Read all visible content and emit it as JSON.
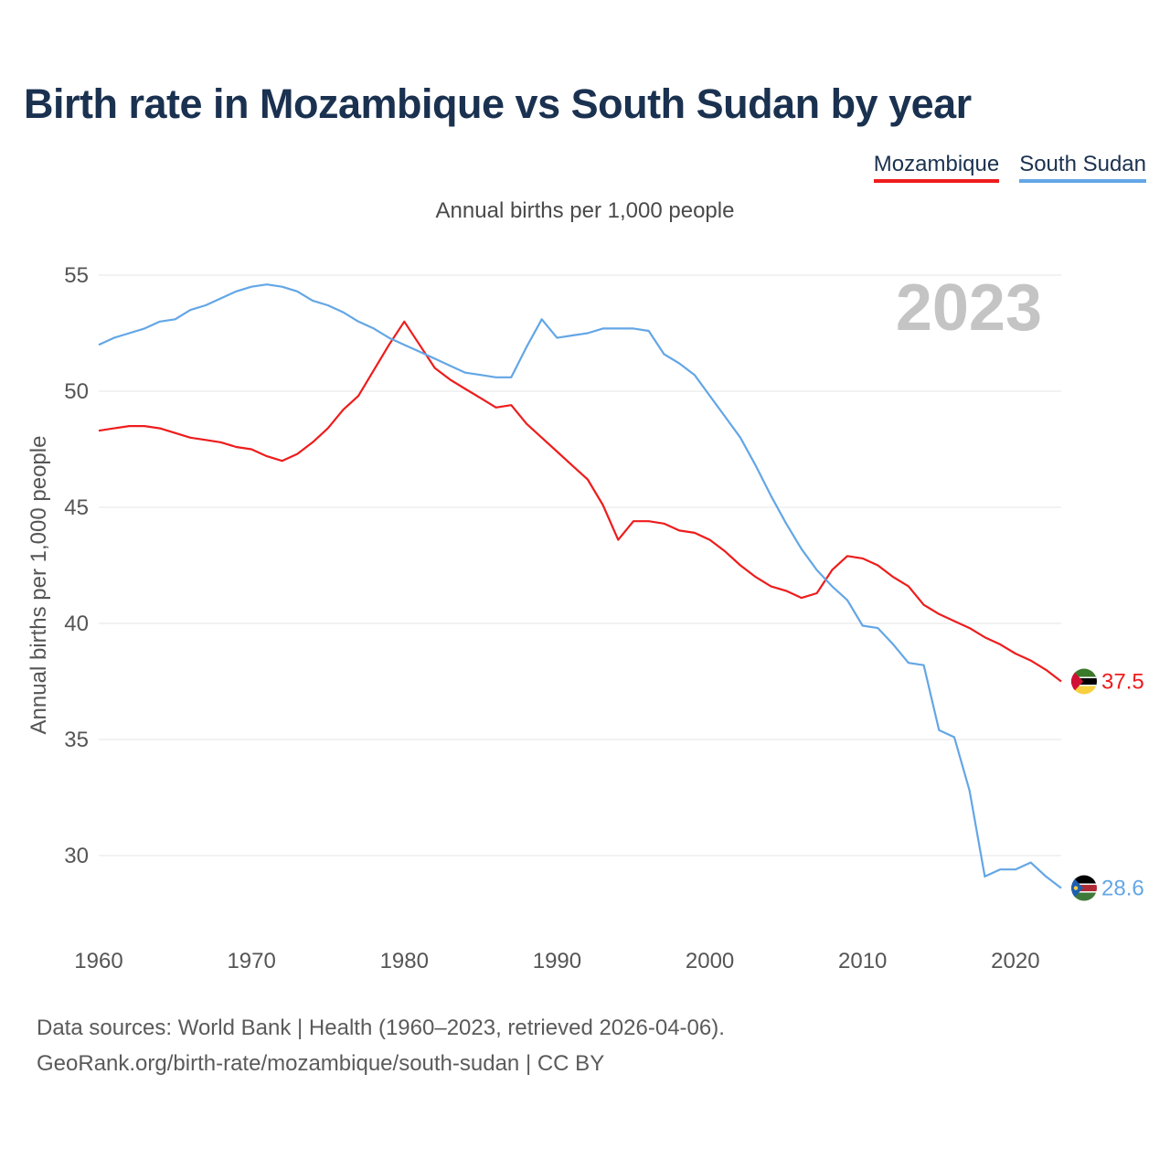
{
  "title": "Birth rate in Mozambique vs South Sudan by year",
  "subtitle": "Annual births per 1,000 people",
  "legend": [
    {
      "name": "Mozambique",
      "color": "#ee1c1c"
    },
    {
      "name": "South Sudan",
      "color": "#63a6e6"
    }
  ],
  "year_badge": "2023",
  "footer": {
    "line1": "Data sources: World Bank | Health (1960–2023, retrieved 2026-04-06).",
    "line2": "GeoRank.org/birth-rate/mozambique/south-sudan | CC BY"
  },
  "chart_data": {
    "type": "line",
    "title": "Birth rate in Mozambique vs South Sudan by year",
    "subtitle": "Annual births per 1,000 people",
    "xlabel": "",
    "ylabel": "Annual births per 1,000 people",
    "xlim": [
      1960,
      2023
    ],
    "ylim": [
      27.2,
      56
    ],
    "x_ticks": [
      1960,
      1970,
      1980,
      1990,
      2000,
      2010,
      2020
    ],
    "y_ticks": [
      30,
      35,
      40,
      45,
      50,
      55
    ],
    "grid": true,
    "x": [
      1960,
      1961,
      1962,
      1963,
      1964,
      1965,
      1966,
      1967,
      1968,
      1969,
      1970,
      1971,
      1972,
      1973,
      1974,
      1975,
      1976,
      1977,
      1978,
      1979,
      1980,
      1981,
      1982,
      1983,
      1984,
      1985,
      1986,
      1987,
      1988,
      1989,
      1990,
      1991,
      1992,
      1993,
      1994,
      1995,
      1996,
      1997,
      1998,
      1999,
      2000,
      2001,
      2002,
      2003,
      2004,
      2005,
      2006,
      2007,
      2008,
      2009,
      2010,
      2011,
      2012,
      2013,
      2014,
      2015,
      2016,
      2017,
      2018,
      2019,
      2020,
      2021,
      2022,
      2023
    ],
    "series": [
      {
        "name": "Mozambique",
        "color": "#ee1c1c",
        "end_label": "37.5",
        "values": [
          48.3,
          48.4,
          48.5,
          48.5,
          48.4,
          48.2,
          48.0,
          47.9,
          47.8,
          47.6,
          47.5,
          47.2,
          47.0,
          47.3,
          47.8,
          48.4,
          49.2,
          49.8,
          50.9,
          52.0,
          53.0,
          52.0,
          51.0,
          50.5,
          50.1,
          49.7,
          49.3,
          49.4,
          48.6,
          48.0,
          47.4,
          46.8,
          46.2,
          45.1,
          43.6,
          44.4,
          44.4,
          44.3,
          44.0,
          43.9,
          43.6,
          43.1,
          42.5,
          42.0,
          41.6,
          41.4,
          41.1,
          41.3,
          42.3,
          42.9,
          42.8,
          42.5,
          42.0,
          41.6,
          40.8,
          40.4,
          40.1,
          39.8,
          39.4,
          39.1,
          38.7,
          38.4,
          38.0,
          37.5
        ]
      },
      {
        "name": "South Sudan",
        "color": "#63a6e6",
        "end_label": "28.6",
        "values": [
          52.0,
          52.3,
          52.5,
          52.7,
          53.0,
          53.1,
          53.5,
          53.7,
          54.0,
          54.3,
          54.5,
          54.6,
          54.5,
          54.3,
          53.9,
          53.7,
          53.4,
          53.0,
          52.7,
          52.3,
          52.0,
          51.7,
          51.4,
          51.1,
          50.8,
          50.7,
          50.6,
          50.6,
          51.9,
          53.1,
          52.3,
          52.4,
          52.5,
          52.7,
          52.7,
          52.7,
          52.6,
          51.6,
          51.2,
          50.7,
          49.8,
          48.9,
          48.0,
          46.8,
          45.5,
          44.3,
          43.2,
          42.3,
          41.6,
          41.0,
          39.9,
          39.8,
          39.1,
          38.3,
          38.2,
          35.4,
          35.1,
          32.8,
          29.1,
          29.4,
          29.4,
          29.7,
          29.1,
          28.6
        ]
      }
    ]
  }
}
